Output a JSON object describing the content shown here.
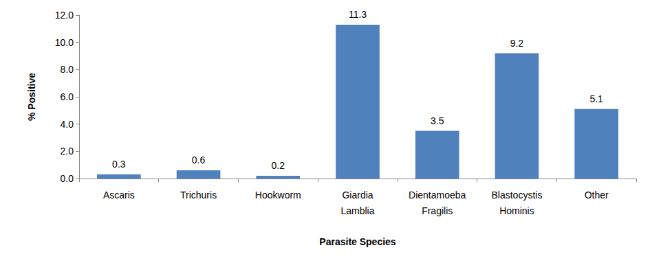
{
  "chart_data": {
    "type": "bar",
    "x_label": "Parasite Species",
    "y_label": "% Positive",
    "categories": [
      "Ascaris",
      "Trichuris",
      "Hookworm",
      "Giardia Lamblia",
      "Dientamoeba Fragilis",
      "Blastocystis Hominis",
      "Other"
    ],
    "values": [
      0.3,
      0.6,
      0.2,
      11.3,
      3.5,
      9.2,
      5.1
    ],
    "color": "#4f81bd",
    "ylim": [
      0,
      12
    ],
    "yticks": [
      {
        "value": 0,
        "label": "0.0"
      },
      {
        "value": 2,
        "label": "2.0"
      },
      {
        "value": 4,
        "label": "4.0"
      },
      {
        "value": 6,
        "label": "6.0"
      },
      {
        "value": 8,
        "label": "8.0"
      },
      {
        "value": 10,
        "label": "10.0"
      },
      {
        "value": 12,
        "label": "12.0"
      }
    ],
    "grid": false,
    "data_labels": true
  }
}
